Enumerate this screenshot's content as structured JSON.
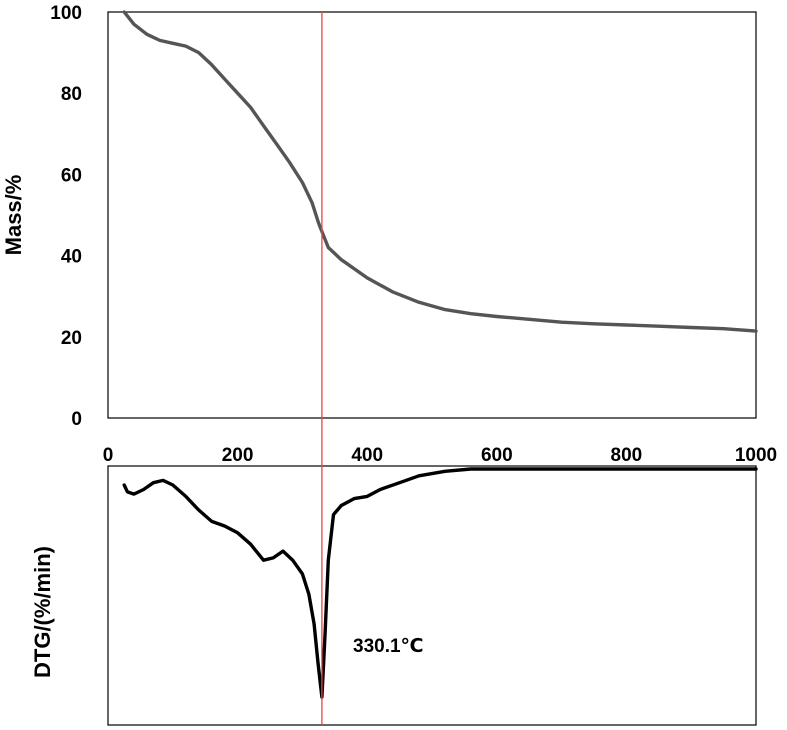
{
  "chart_data": [
    {
      "type": "line",
      "ylabel": "Mass/%",
      "xlabel": "",
      "xlim": [
        0,
        1000
      ],
      "ylim": [
        0,
        100
      ],
      "xticks": [
        "200",
        "400",
        "600",
        "800",
        "1000"
      ],
      "xtick_origin": "0",
      "yticks": [
        "0",
        "20",
        "40",
        "60",
        "80",
        "100"
      ],
      "series": [
        {
          "color": "#555555",
          "points": [
            [
              25,
              100
            ],
            [
              40,
              97
            ],
            [
              60,
              94.5
            ],
            [
              80,
              93
            ],
            [
              100,
              92.3
            ],
            [
              120,
              91.6
            ],
            [
              140,
              90
            ],
            [
              160,
              87
            ],
            [
              180,
              83.5
            ],
            [
              200,
              80
            ],
            [
              220,
              76.5
            ],
            [
              240,
              72
            ],
            [
              260,
              67.5
            ],
            [
              280,
              63
            ],
            [
              300,
              58
            ],
            [
              315,
              53
            ],
            [
              325,
              48
            ],
            [
              330,
              46
            ],
            [
              340,
              42
            ],
            [
              360,
              39
            ],
            [
              400,
              34.5
            ],
            [
              440,
              31
            ],
            [
              480,
              28.5
            ],
            [
              520,
              26.7
            ],
            [
              560,
              25.7
            ],
            [
              600,
              25
            ],
            [
              650,
              24.3
            ],
            [
              700,
              23.6
            ],
            [
              750,
              23.2
            ],
            [
              800,
              22.9
            ],
            [
              850,
              22.6
            ],
            [
              900,
              22.3
            ],
            [
              950,
              22
            ],
            [
              1000,
              21.4
            ]
          ]
        }
      ],
      "vline_x": 330.1,
      "vline_color": "#e8453c",
      "grid": false
    },
    {
      "type": "line",
      "ylabel": "DTG/(%/min)",
      "xlim": [
        0,
        1000
      ],
      "yticks": [],
      "annotation": "330.1℃",
      "series": [
        {
          "color": "#000000",
          "points_relative_depth": [
            [
              25,
              0.07
            ],
            [
              30,
              0.1
            ],
            [
              40,
              0.11
            ],
            [
              55,
              0.09
            ],
            [
              70,
              0.06
            ],
            [
              85,
              0.05
            ],
            [
              100,
              0.07
            ],
            [
              120,
              0.12
            ],
            [
              140,
              0.18
            ],
            [
              160,
              0.23
            ],
            [
              180,
              0.25
            ],
            [
              200,
              0.28
            ],
            [
              220,
              0.33
            ],
            [
              240,
              0.4
            ],
            [
              255,
              0.39
            ],
            [
              270,
              0.36
            ],
            [
              285,
              0.4
            ],
            [
              300,
              0.46
            ],
            [
              310,
              0.55
            ],
            [
              318,
              0.68
            ],
            [
              324,
              0.85
            ],
            [
              330.1,
              1.0
            ],
            [
              335,
              0.72
            ],
            [
              340,
              0.4
            ],
            [
              348,
              0.2
            ],
            [
              360,
              0.16
            ],
            [
              380,
              0.13
            ],
            [
              400,
              0.12
            ],
            [
              420,
              0.09
            ],
            [
              450,
              0.06
            ],
            [
              480,
              0.03
            ],
            [
              520,
              0.01
            ],
            [
              560,
              0.0
            ],
            [
              600,
              0.0
            ],
            [
              700,
              0.0
            ],
            [
              800,
              0.0
            ],
            [
              900,
              0.0
            ],
            [
              1000,
              0.0
            ]
          ]
        }
      ],
      "grid": false
    }
  ]
}
